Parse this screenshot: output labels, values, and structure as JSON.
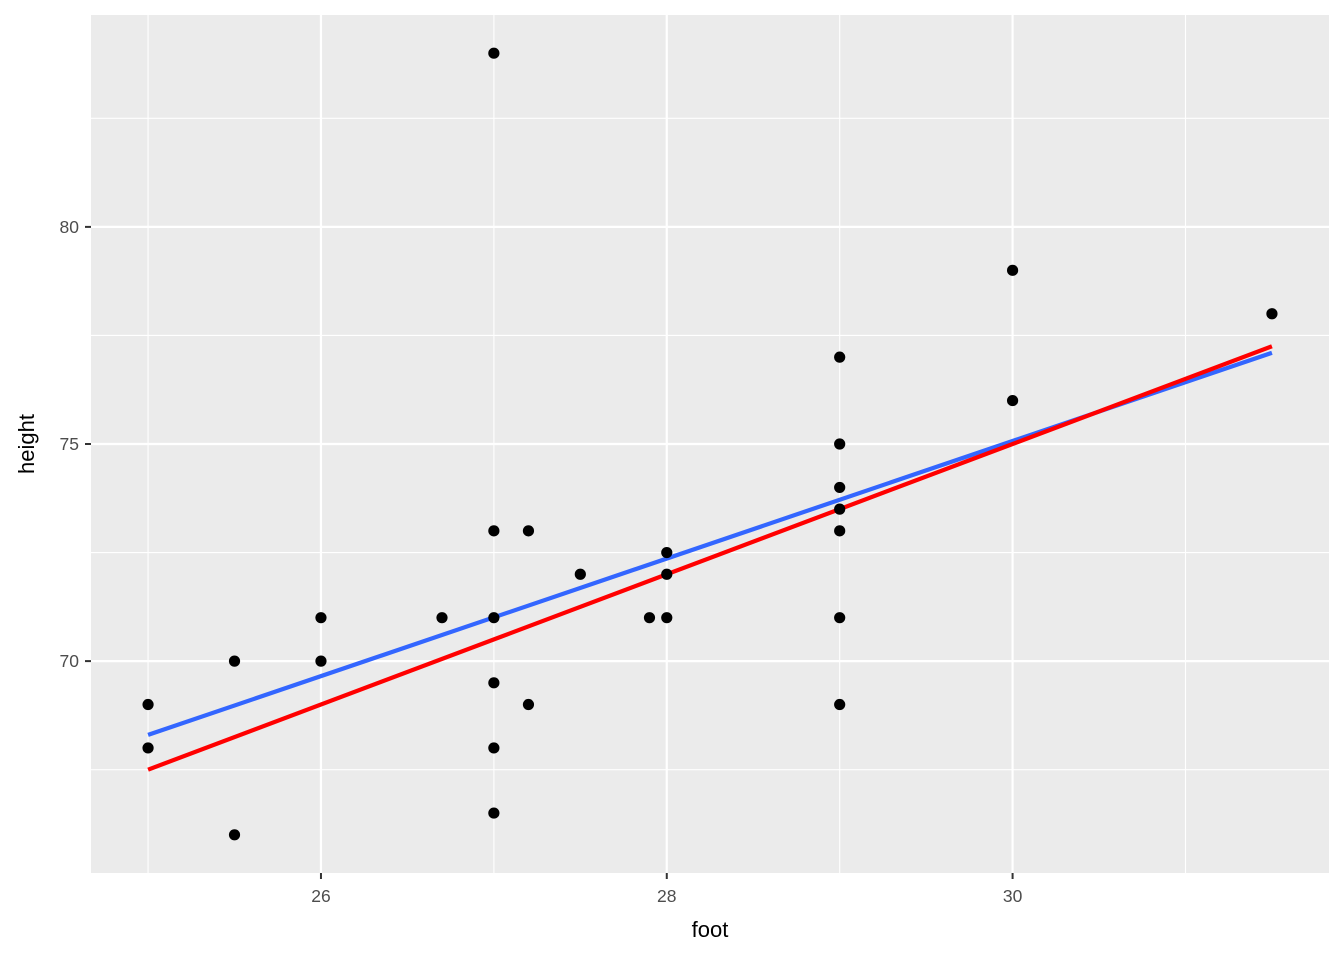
{
  "chart_data": {
    "type": "scatter",
    "title": "",
    "xlabel": "foot",
    "ylabel": "height",
    "xlim": [
      24.67,
      31.83
    ],
    "ylim": [
      65.12,
      84.88
    ],
    "x_ticks": [
      26,
      28,
      30
    ],
    "x_tick_labels": [
      "26",
      "28",
      "30"
    ],
    "y_ticks": [
      70,
      75,
      80
    ],
    "y_tick_labels": [
      "70",
      "75",
      "80"
    ],
    "x_minor_ticks": [
      25,
      27,
      29,
      31
    ],
    "y_minor_ticks": [
      67.5,
      72.5,
      77.5,
      82.5
    ],
    "grid": true,
    "legend": "none",
    "colors": {
      "panel_background": "#ebebeb",
      "grid": "#ffffff",
      "points": "#000000",
      "fit_line_blue": "#3366ff",
      "fit_line_red": "#ff0000"
    },
    "points": [
      {
        "x": 25.0,
        "y": 69.0
      },
      {
        "x": 25.0,
        "y": 68.0
      },
      {
        "x": 25.5,
        "y": 70.0
      },
      {
        "x": 25.5,
        "y": 66.0
      },
      {
        "x": 26.0,
        "y": 71.0
      },
      {
        "x": 26.0,
        "y": 70.0
      },
      {
        "x": 26.7,
        "y": 71.0
      },
      {
        "x": 27.0,
        "y": 84.0
      },
      {
        "x": 27.0,
        "y": 73.0
      },
      {
        "x": 27.0,
        "y": 71.0
      },
      {
        "x": 27.0,
        "y": 69.5
      },
      {
        "x": 27.0,
        "y": 68.0
      },
      {
        "x": 27.0,
        "y": 66.5
      },
      {
        "x": 27.2,
        "y": 73.0
      },
      {
        "x": 27.2,
        "y": 69.0
      },
      {
        "x": 27.5,
        "y": 72.0
      },
      {
        "x": 27.9,
        "y": 71.0
      },
      {
        "x": 28.0,
        "y": 72.5
      },
      {
        "x": 28.0,
        "y": 72.0
      },
      {
        "x": 28.0,
        "y": 71.0
      },
      {
        "x": 29.0,
        "y": 77.0
      },
      {
        "x": 29.0,
        "y": 75.0
      },
      {
        "x": 29.0,
        "y": 74.0
      },
      {
        "x": 29.0,
        "y": 73.5
      },
      {
        "x": 29.0,
        "y": 73.0
      },
      {
        "x": 29.0,
        "y": 71.0
      },
      {
        "x": 29.0,
        "y": 69.0
      },
      {
        "x": 30.0,
        "y": 79.0
      },
      {
        "x": 30.0,
        "y": 76.0
      },
      {
        "x": 31.5,
        "y": 78.0
      }
    ],
    "series": [
      {
        "type": "line",
        "color": "#3366ff",
        "x": [
          25.0,
          31.5
        ],
        "y": [
          68.3,
          77.1
        ]
      },
      {
        "type": "line",
        "color": "#ff0000",
        "x": [
          25.0,
          31.5
        ],
        "y": [
          67.5,
          77.25
        ]
      }
    ]
  }
}
